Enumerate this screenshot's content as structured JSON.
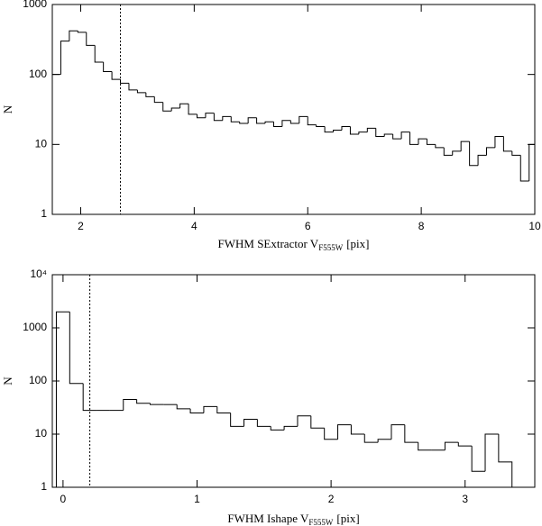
{
  "chart_data": [
    {
      "type": "histogram",
      "ylabel": "N",
      "xlabel": "FWHM SExtractor V",
      "xlabel_sub": "F555W",
      "xlabel_suffix": "[pix]",
      "log_y": true,
      "xlim": [
        1.5,
        10
      ],
      "ylim": [
        1,
        1000
      ],
      "xticks": [
        2,
        4,
        6,
        8,
        10
      ],
      "yticks": [
        1,
        10,
        100,
        1000
      ],
      "vline": 2.7,
      "color": "#000000",
      "bins": [
        1.5,
        1.65,
        1.8,
        1.95,
        2.1,
        2.25,
        2.4,
        2.55,
        2.7,
        2.85,
        3.0,
        3.15,
        3.3,
        3.45,
        3.6,
        3.75,
        3.9,
        4.05,
        4.2,
        4.35,
        4.5,
        4.65,
        4.8,
        4.95,
        5.1,
        5.25,
        5.4,
        5.55,
        5.7,
        5.85,
        6.0,
        6.15,
        6.3,
        6.45,
        6.6,
        6.75,
        6.9,
        7.05,
        7.2,
        7.35,
        7.5,
        7.65,
        7.8,
        7.95,
        8.1,
        8.25,
        8.4,
        8.55,
        8.7,
        8.85,
        9.0,
        9.15,
        9.3,
        9.45,
        9.6,
        9.75,
        9.9,
        10.0
      ],
      "values": [
        100,
        300,
        420,
        400,
        260,
        150,
        110,
        85,
        75,
        60,
        55,
        48,
        40,
        30,
        33,
        38,
        27,
        24,
        28,
        22,
        25,
        21,
        20,
        24,
        20,
        21,
        18,
        22,
        20,
        25,
        19,
        18,
        15,
        16,
        18,
        14,
        15,
        17,
        13,
        14,
        12,
        15,
        10,
        12,
        10,
        9,
        7,
        8,
        11,
        5,
        7,
        9,
        13,
        8,
        7,
        3,
        10
      ]
    },
    {
      "type": "histogram",
      "ylabel": "N",
      "xlabel": "FWHM Ishape V",
      "xlabel_sub": "F555W",
      "xlabel_suffix": "[pix]",
      "log_y": true,
      "xlim": [
        -0.08,
        3.52
      ],
      "ylim": [
        1,
        10000
      ],
      "xticks": [
        0,
        1,
        2,
        3
      ],
      "yticks": [
        1,
        10,
        100,
        1000,
        {
          "value": 10000,
          "label": "10⁴"
        }
      ],
      "vline": 0.2,
      "color": "#000000",
      "bins": [
        -0.05,
        0.05,
        0.15,
        0.25,
        0.35,
        0.45,
        0.55,
        0.65,
        0.75,
        0.85,
        0.95,
        1.05,
        1.15,
        1.25,
        1.35,
        1.45,
        1.55,
        1.65,
        1.75,
        1.85,
        1.95,
        2.05,
        2.15,
        2.25,
        2.35,
        2.45,
        2.55,
        2.65,
        2.75,
        2.85,
        2.95,
        3.05,
        3.15,
        3.25,
        3.35
      ],
      "values": [
        2000,
        90,
        28,
        28,
        28,
        45,
        38,
        36,
        36,
        30,
        25,
        33,
        25,
        14,
        19,
        14,
        12,
        14,
        22,
        13,
        8,
        15,
        10,
        7,
        8,
        15,
        7,
        5,
        5,
        7,
        6,
        2,
        10,
        3
      ]
    }
  ]
}
